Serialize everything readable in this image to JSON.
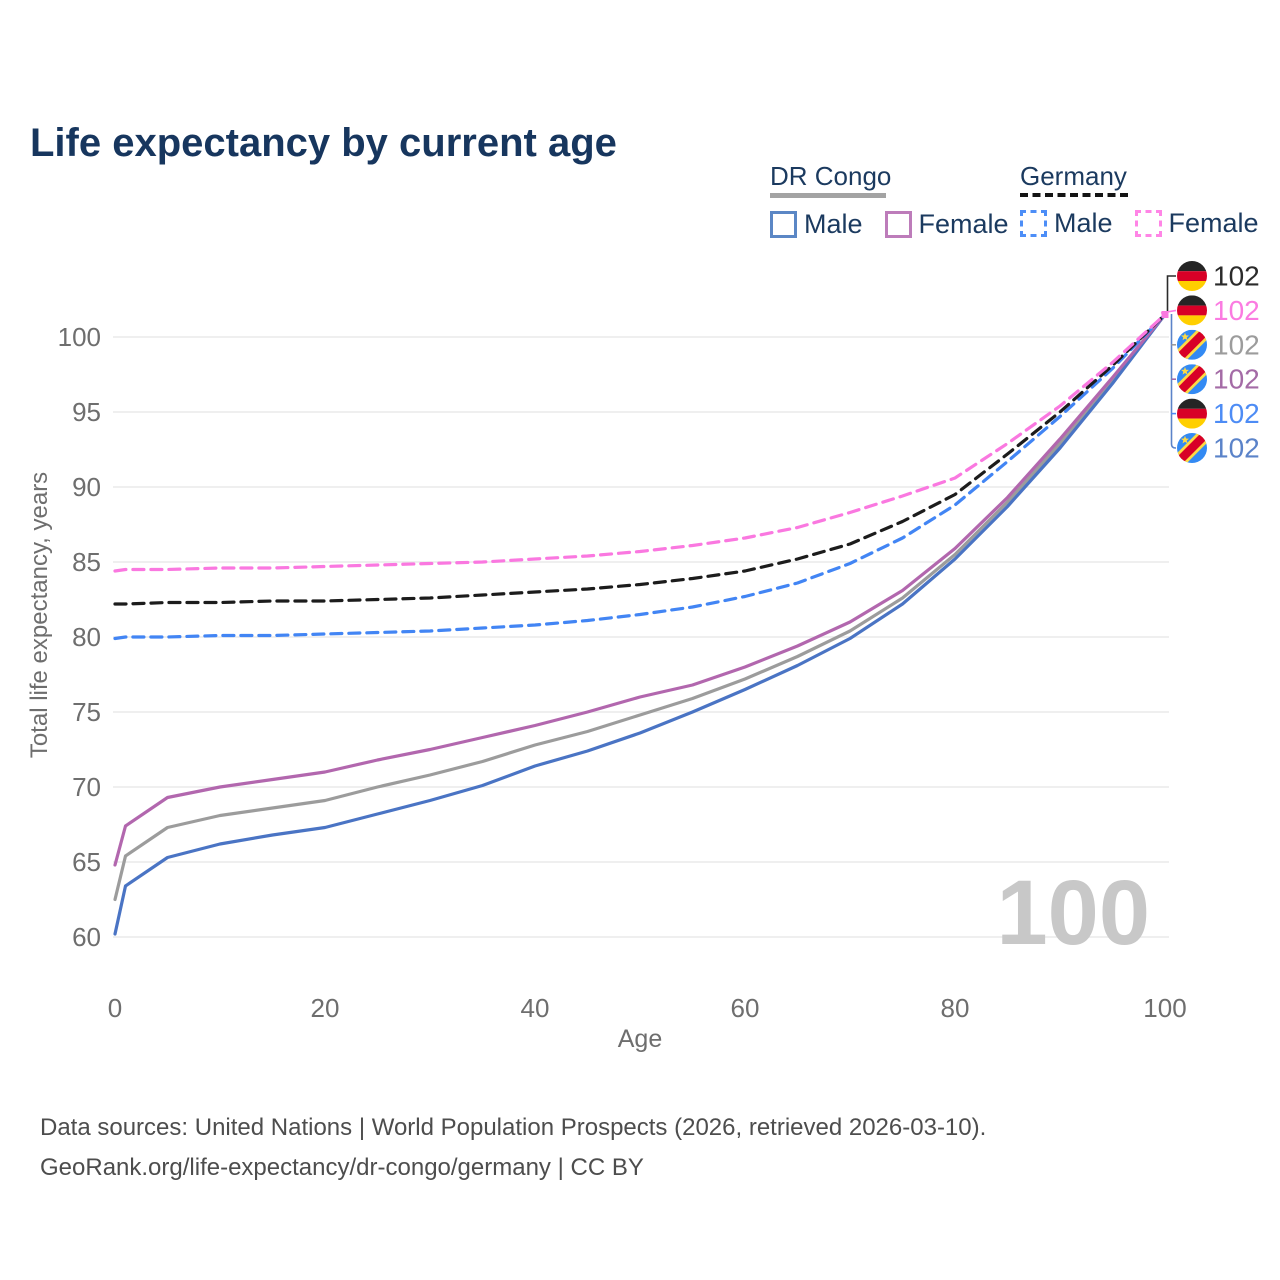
{
  "header": {
    "title": "Life expectancy by current age"
  },
  "legend": {
    "groups": [
      {
        "country": "DR Congo",
        "line_style": "solid",
        "underline_color": "#a3a3a3",
        "items": [
          {
            "label": "Male",
            "color": "#5b87c5",
            "dashed": false
          },
          {
            "label": "Female",
            "color": "#bd7cba",
            "dashed": false
          }
        ]
      },
      {
        "country": "Germany",
        "line_style": "dashed",
        "underline_color": "#141414",
        "items": [
          {
            "label": "Male",
            "color": "#4d8ef7",
            "dashed": true
          },
          {
            "label": "Female",
            "color": "#ff85e6",
            "dashed": true
          }
        ]
      }
    ]
  },
  "chart_data": {
    "type": "line",
    "title": "Life expectancy by current age",
    "xlabel": "Age",
    "ylabel": "Total life expectancy, years",
    "xlim": [
      0,
      100
    ],
    "ylim": [
      58,
      103
    ],
    "xticks": [
      0,
      20,
      40,
      60,
      80,
      100
    ],
    "yticks": [
      60,
      65,
      70,
      75,
      80,
      85,
      90,
      95,
      100
    ],
    "grid": "horizontal",
    "watermark": "100",
    "x": [
      0,
      1,
      5,
      10,
      15,
      20,
      25,
      30,
      35,
      40,
      45,
      50,
      55,
      60,
      65,
      70,
      75,
      80,
      85,
      90,
      95,
      100
    ],
    "series": [
      {
        "id": "dr-congo-both",
        "name": "DR Congo",
        "country": "DR Congo",
        "sex": "both",
        "color": "#9c9c9c",
        "dashed": false,
        "values": [
          62.5,
          65.4,
          67.3,
          68.1,
          68.6,
          69.1,
          70.0,
          70.8,
          71.7,
          72.8,
          73.7,
          74.8,
          75.9,
          77.2,
          78.7,
          80.4,
          82.6,
          85.5,
          89.0,
          92.9,
          97.1,
          101.5
        ]
      },
      {
        "id": "dr-congo-male",
        "name": "DR Congo Male",
        "country": "DR Congo",
        "sex": "male",
        "color": "#4a74c4",
        "dashed": false,
        "values": [
          60.2,
          63.4,
          65.3,
          66.2,
          66.8,
          67.3,
          68.2,
          69.1,
          70.1,
          71.4,
          72.4,
          73.6,
          75.0,
          76.5,
          78.1,
          79.9,
          82.2,
          85.2,
          88.7,
          92.6,
          96.9,
          101.5
        ]
      },
      {
        "id": "dr-congo-female",
        "name": "DR Congo Female",
        "country": "DR Congo",
        "sex": "female",
        "color": "#b267ae",
        "dashed": false,
        "values": [
          64.8,
          67.4,
          69.3,
          70.0,
          70.5,
          71.0,
          71.8,
          72.5,
          73.3,
          74.1,
          75.0,
          76.0,
          76.8,
          78.0,
          79.4,
          81.0,
          83.1,
          85.9,
          89.3,
          93.2,
          97.3,
          101.5
        ]
      },
      {
        "id": "germany-male",
        "name": "Germany Male",
        "country": "Germany",
        "sex": "male",
        "color": "#4285f4",
        "dashed": true,
        "values": [
          79.9,
          80.0,
          80.0,
          80.1,
          80.1,
          80.2,
          80.3,
          80.4,
          80.6,
          80.8,
          81.1,
          81.5,
          82.0,
          82.7,
          83.6,
          84.9,
          86.6,
          88.8,
          91.7,
          94.7,
          97.9,
          101.5
        ]
      },
      {
        "id": "germany-both",
        "name": "Germany",
        "country": "Germany",
        "sex": "both",
        "color": "#1c1c1c",
        "dashed": true,
        "values": [
          82.2,
          82.2,
          82.3,
          82.3,
          82.4,
          82.4,
          82.5,
          82.6,
          82.8,
          83.0,
          83.2,
          83.5,
          83.9,
          84.4,
          85.2,
          86.2,
          87.7,
          89.5,
          92.2,
          95.0,
          98.1,
          101.5
        ]
      },
      {
        "id": "germany-female",
        "name": "Germany Female",
        "country": "Germany",
        "sex": "female",
        "color": "#fa78e0",
        "dashed": true,
        "end_marker": true,
        "values": [
          84.4,
          84.5,
          84.5,
          84.6,
          84.6,
          84.7,
          84.8,
          84.9,
          85.0,
          85.2,
          85.4,
          85.7,
          86.1,
          86.6,
          87.3,
          88.3,
          89.4,
          90.6,
          92.9,
          95.4,
          98.3,
          101.5
        ]
      }
    ],
    "end_labels": [
      {
        "flag": "germany",
        "series": "germany-both",
        "value": "102",
        "color": "#2b2b2b"
      },
      {
        "flag": "germany",
        "series": "germany-female",
        "value": "102",
        "color": "#fb7be1"
      },
      {
        "flag": "drcongo",
        "series": "dr-congo-both",
        "value": "102",
        "color": "#9c9c9c"
      },
      {
        "flag": "drcongo",
        "series": "dr-congo-female",
        "value": "102",
        "color": "#a46ba6"
      },
      {
        "flag": "germany",
        "series": "germany-male",
        "value": "102",
        "color": "#4d8cf5"
      },
      {
        "flag": "drcongo",
        "series": "dr-congo-male",
        "value": "102",
        "color": "#5b83c9"
      }
    ]
  },
  "footer": {
    "line1": "Data sources: United Nations | World Population Prospects (2026, retrieved 2026-03-10).",
    "line2": "GeoRank.org/life-expectancy/dr-congo/germany | CC BY"
  }
}
